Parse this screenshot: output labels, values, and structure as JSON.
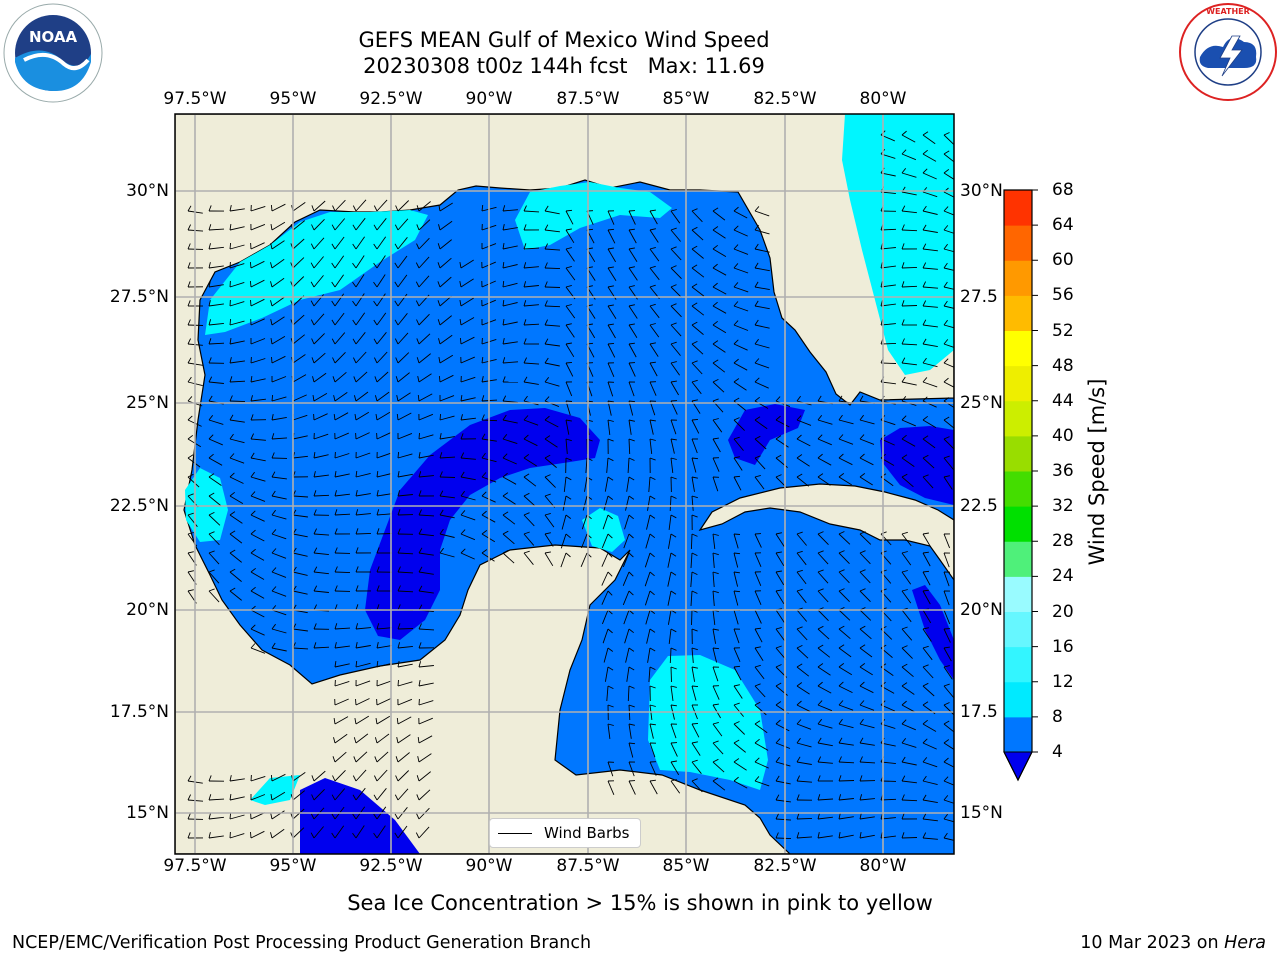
{
  "title": {
    "line1": "GEFS MEAN Gulf of Mexico Wind Speed",
    "line2": "20230308 t00z 144h fcst   Max: 11.69"
  },
  "lon_labels": [
    "97.5°W",
    "95°W",
    "92.5°W",
    "90°W",
    "87.5°W",
    "85°W",
    "82.5°W",
    "80°W"
  ],
  "lat_labels": [
    "30°N",
    "27.5°N",
    "25°N",
    "22.5°N",
    "20°N",
    "17.5°N",
    "15°N"
  ],
  "lat_labels_right": [
    "30°N",
    "27.5",
    "25°N",
    "22.5",
    "20°N",
    "17.5",
    "15°N"
  ],
  "colorbar": {
    "label": "Wind Speed [m/s]",
    "ticks": [
      "4",
      "8",
      "12",
      "16",
      "20",
      "24",
      "28",
      "32",
      "36",
      "40",
      "44",
      "48",
      "52",
      "56",
      "60",
      "64",
      "68"
    ],
    "colors": [
      "#0077ff",
      "#00eaff",
      "#33f5ff",
      "#66f7ff",
      "#99fbff",
      "#4ff07a",
      "#00e000",
      "#44dd00",
      "#99dd00",
      "#ccee00",
      "#eeee00",
      "#ffff00",
      "#ffbb00",
      "#ff9900",
      "#ff6600",
      "#ff3300",
      "#ff0000"
    ],
    "under_color": "#0000ee"
  },
  "legend": {
    "label": "Wind Barbs"
  },
  "subtitle": "Sea Ice Concentration > 15% is shown in pink to yellow",
  "footer": {
    "left": "NCEP/EMC/Verification Post Processing Product Generation Branch",
    "right_prefix": "10 Mar 2023 on ",
    "right_machine": "Hera"
  },
  "logos": {
    "noaa": "NOAA",
    "nws": "NATIONAL WEATHER SERVICE"
  },
  "colors": {
    "land": "#efedd9",
    "band_4_8": "#0077ff",
    "band_8_12": "#00f6ff",
    "below_4": "#0000ee",
    "grid": "#b0b0b0"
  }
}
